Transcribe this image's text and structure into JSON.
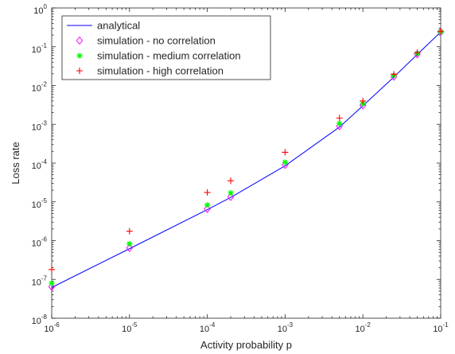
{
  "chart_data": {
    "type": "line",
    "xlabel": "Activity probability p",
    "ylabel": "Loss rate",
    "x_scale": "log",
    "y_scale": "log",
    "xlim": [
      1e-06,
      0.1
    ],
    "ylim": [
      1e-08,
      1
    ],
    "grid": false,
    "legend_position": "top-left",
    "x_ticks": [
      {
        "base": "10",
        "exp": "-6",
        "value": 1e-06
      },
      {
        "base": "10",
        "exp": "-5",
        "value": 1e-05
      },
      {
        "base": "10",
        "exp": "-4",
        "value": 0.0001
      },
      {
        "base": "10",
        "exp": "-3",
        "value": 0.001
      },
      {
        "base": "10",
        "exp": "-2",
        "value": 0.01
      },
      {
        "base": "10",
        "exp": "-1",
        "value": 0.1
      }
    ],
    "y_ticks": [
      {
        "base": "10",
        "exp": "-8",
        "value": 1e-08
      },
      {
        "base": "10",
        "exp": "-7",
        "value": 1e-07
      },
      {
        "base": "10",
        "exp": "-6",
        "value": 1e-06
      },
      {
        "base": "10",
        "exp": "-5",
        "value": 1e-05
      },
      {
        "base": "10",
        "exp": "-4",
        "value": 0.0001
      },
      {
        "base": "10",
        "exp": "-3",
        "value": 0.001
      },
      {
        "base": "10",
        "exp": "-2",
        "value": 0.01
      },
      {
        "base": "10",
        "exp": "-1",
        "value": 0.1
      },
      {
        "base": "10",
        "exp": "0",
        "value": 1
      }
    ],
    "series": [
      {
        "name": "analytical",
        "kind": "line",
        "color": "#0000ff",
        "x": [
          1e-06,
          1e-05,
          0.0001,
          0.0002,
          0.001,
          0.005,
          0.01,
          0.025,
          0.05,
          0.1
        ],
        "y": [
          6.2e-08,
          6.2e-07,
          6.3e-06,
          1.3e-05,
          8.5e-05,
          0.00085,
          0.003,
          0.0165,
          0.063,
          0.24
        ]
      },
      {
        "name": "simulation - no correlation",
        "kind": "diamond",
        "color": "#ff00ff",
        "x": [
          1e-06,
          1e-05,
          0.0001,
          0.0002,
          0.001,
          0.005,
          0.01,
          0.025,
          0.05,
          0.1
        ],
        "y": [
          6.5e-08,
          6.5e-07,
          6.6e-06,
          1.35e-05,
          9e-05,
          0.0009,
          0.0031,
          0.017,
          0.064,
          0.24
        ]
      },
      {
        "name": "simulation - medium correlation",
        "kind": "asterisk",
        "color": "#00ff00",
        "x": [
          1e-06,
          1e-05,
          0.0001,
          0.0002,
          0.001,
          0.005,
          0.01,
          0.025,
          0.05,
          0.1
        ],
        "y": [
          8e-08,
          8.3e-07,
          8.3e-06,
          1.7e-05,
          0.000105,
          0.00105,
          0.0034,
          0.018,
          0.067,
          0.24
        ]
      },
      {
        "name": "simulation - high correlation",
        "kind": "plus",
        "color": "#ff0000",
        "x": [
          1e-06,
          1e-05,
          0.0001,
          0.0002,
          0.001,
          0.005,
          0.01,
          0.025,
          0.05,
          0.1
        ],
        "y": [
          1.8e-07,
          1.75e-06,
          1.75e-05,
          3.5e-05,
          0.00019,
          0.00145,
          0.004,
          0.0195,
          0.07,
          0.25
        ]
      }
    ]
  }
}
